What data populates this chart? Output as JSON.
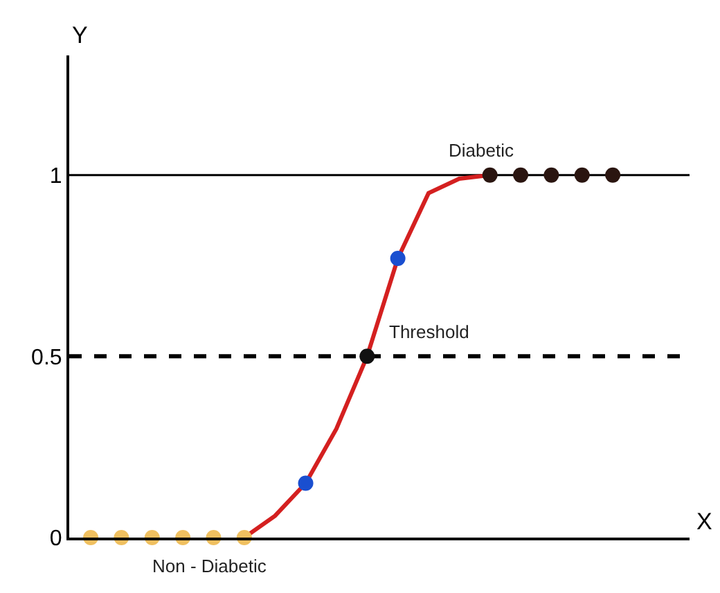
{
  "chart_data": {
    "type": "scatter",
    "xlabel": "X",
    "ylabel": "Y",
    "categories": [
      null,
      null,
      null,
      null,
      null,
      null,
      null,
      null,
      null,
      null,
      null,
      null,
      null,
      null,
      null,
      null,
      null,
      null,
      null,
      null
    ],
    "ylim": [
      0,
      1.33
    ],
    "yticks": [
      0,
      0.5,
      1
    ],
    "tick_labels": "y",
    "grid": false,
    "series": [
      {
        "type": "line",
        "color": "#d42020",
        "values": [
          null,
          null,
          null,
          null,
          null,
          0,
          0.06,
          0.15,
          0.3,
          0.5,
          0.77,
          0.95,
          0.99,
          1,
          null,
          null,
          null,
          null,
          null,
          null
        ],
        "marker": "none",
        "line_style": "solid"
      },
      {
        "color": "#f0c060",
        "values": [
          0,
          0,
          0,
          0,
          0,
          0,
          null,
          null,
          null,
          null,
          null,
          null,
          null,
          null,
          null,
          null,
          null,
          null,
          null,
          null
        ],
        "marker": "circle"
      },
      {
        "color": "#1a4fd0",
        "values": [
          null,
          null,
          null,
          null,
          null,
          null,
          null,
          0.15,
          null,
          null,
          0.77,
          null,
          null,
          null,
          null,
          null,
          null,
          null,
          null,
          null
        ],
        "marker": "circle"
      },
      {
        "color": "#111111",
        "values": [
          null,
          null,
          null,
          null,
          null,
          null,
          null,
          null,
          null,
          0.5,
          null,
          null,
          null,
          null,
          null,
          null,
          null,
          null,
          null,
          null
        ],
        "marker": "circle"
      },
      {
        "color": "#2a1510",
        "values": [
          null,
          null,
          null,
          null,
          null,
          null,
          null,
          null,
          null,
          null,
          null,
          null,
          null,
          1,
          1,
          1,
          1,
          1,
          null,
          null
        ],
        "marker": "circle"
      }
    ],
    "ref_lines": [
      {
        "axis": "y",
        "value": 1,
        "color": "#000000",
        "line_style": "solid"
      },
      {
        "axis": "y",
        "value": 0.5,
        "color": "#000000",
        "line_style": "dashed"
      }
    ],
    "annotations": [
      {
        "text": "Diabetic",
        "y": 1
      },
      {
        "text": "Threshold",
        "y": 0.5
      },
      {
        "text": "Non - Diabetic",
        "y": 0
      }
    ]
  }
}
